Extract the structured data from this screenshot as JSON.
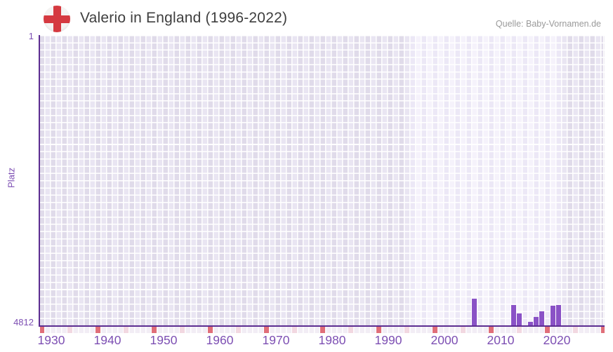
{
  "header": {
    "title": "Valerio in England (1996-2022)",
    "source": "Quelle: Baby-Vornamen.de",
    "flag_icon": "england-flag-icon"
  },
  "y_axis": {
    "label": "Platz",
    "top_tick": "1",
    "bottom_tick": "4812"
  },
  "colors": {
    "bar": "#8a52c6",
    "axis_line": "#5c2d91",
    "tick_label": "#7d4fb3",
    "title_text": "#3e3e3e",
    "source_text": "#9a9a9a",
    "flag_red": "#d53940",
    "strip_decade": "#e06e79",
    "strip_middecade": "#f2d8e1",
    "strip_base": "#f2edf5"
  },
  "chart_data": {
    "type": "bar",
    "title": "Valerio in England (1996-2022)",
    "xlabel": "",
    "ylabel": "Platz",
    "y_axis": {
      "min": 1,
      "max": 4812,
      "inverted": true,
      "ticks": [
        1,
        4812
      ]
    },
    "x_axis": {
      "range_start": 1928,
      "range_end": 2030,
      "ticks": [
        1930,
        1940,
        1950,
        1960,
        1970,
        1980,
        1990,
        2000,
        2010,
        2020
      ]
    },
    "highlight_period": {
      "start": 1996,
      "end": 2022
    },
    "grid": true,
    "legend": "none",
    "series": [
      {
        "name": "Platz",
        "points": [
          {
            "year": 2007,
            "rank": 4365
          },
          {
            "year": 2014,
            "rank": 4475
          },
          {
            "year": 2015,
            "rank": 4615
          },
          {
            "year": 2017,
            "rank": 4750
          },
          {
            "year": 2018,
            "rank": 4670
          },
          {
            "year": 2019,
            "rank": 4585
          },
          {
            "year": 2021,
            "rank": 4490
          },
          {
            "year": 2022,
            "rank": 4470
          }
        ]
      }
    ]
  }
}
